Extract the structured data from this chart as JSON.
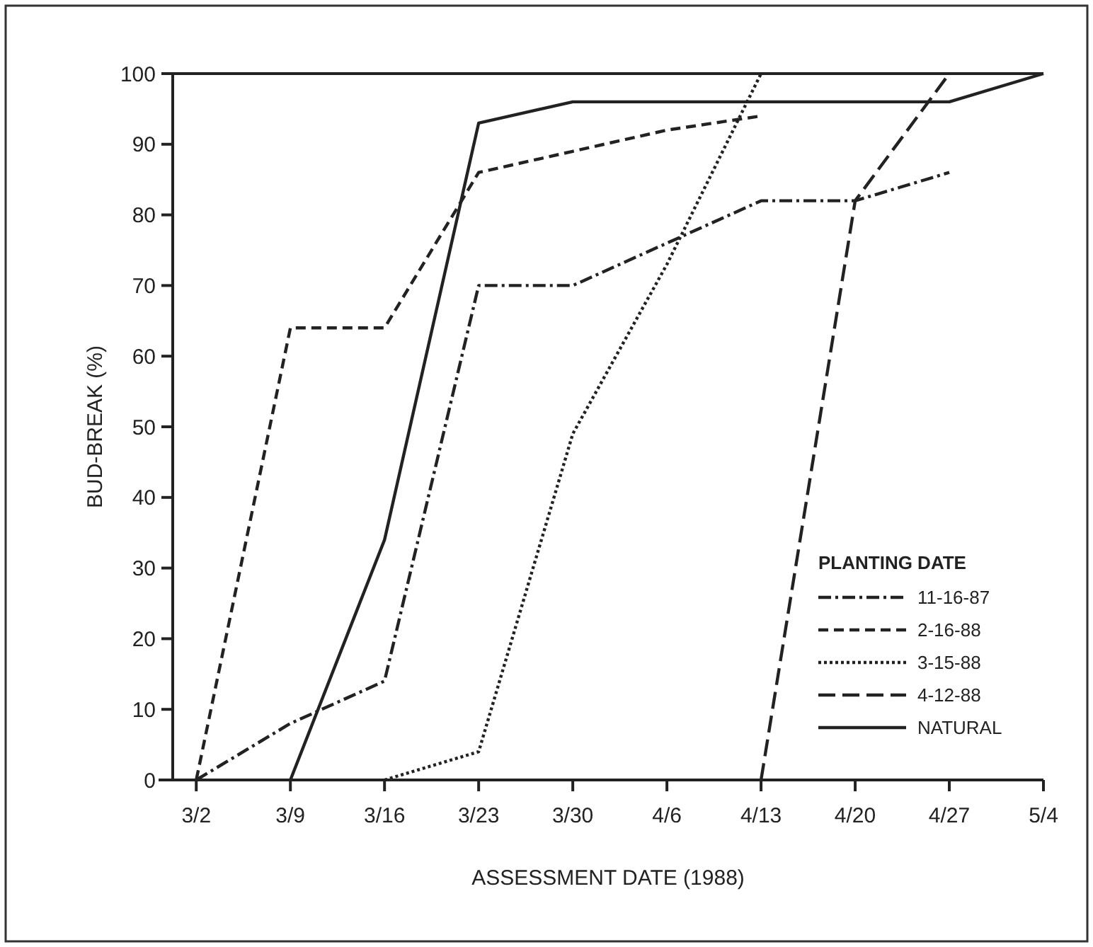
{
  "chart_data": {
    "type": "line",
    "xlabel": "ASSESSMENT DATE (1988)",
    "ylabel": "BUD-BREAK (%)",
    "legend_title": "PLANTING DATE",
    "categories": [
      "3/2",
      "3/9",
      "3/16",
      "3/23",
      "3/30",
      "4/6",
      "4/13",
      "4/20",
      "4/27",
      "5/4"
    ],
    "series": [
      {
        "name": "11-16-87",
        "color": "#222222",
        "line_style": "dashdot",
        "values": [
          0,
          8,
          14,
          70,
          70,
          76,
          82,
          82,
          86,
          null
        ]
      },
      {
        "name": "2-16-88",
        "color": "#222222",
        "line_style": "dashed",
        "values": [
          0,
          64,
          64,
          86,
          89,
          92,
          94,
          null,
          null,
          null
        ]
      },
      {
        "name": "3-15-88",
        "color": "#222222",
        "line_style": "dotted",
        "values": [
          null,
          null,
          0,
          4,
          49,
          73,
          100,
          null,
          null,
          null
        ]
      },
      {
        "name": "4-12-88",
        "color": "#222222",
        "line_style": "longdash",
        "values": [
          null,
          null,
          null,
          null,
          null,
          null,
          0,
          82,
          100,
          null
        ]
      },
      {
        "name": "NATURAL",
        "color": "#222222",
        "line_style": "solid",
        "values": [
          null,
          0,
          34,
          93,
          96,
          96,
          96,
          96,
          96,
          100
        ]
      }
    ],
    "ylim": [
      0,
      100
    ],
    "yticks": [
      0,
      10,
      20,
      30,
      40,
      50,
      60,
      70,
      80,
      90,
      100
    ],
    "grid": false,
    "legend": "bottom right",
    "marker": "none"
  }
}
